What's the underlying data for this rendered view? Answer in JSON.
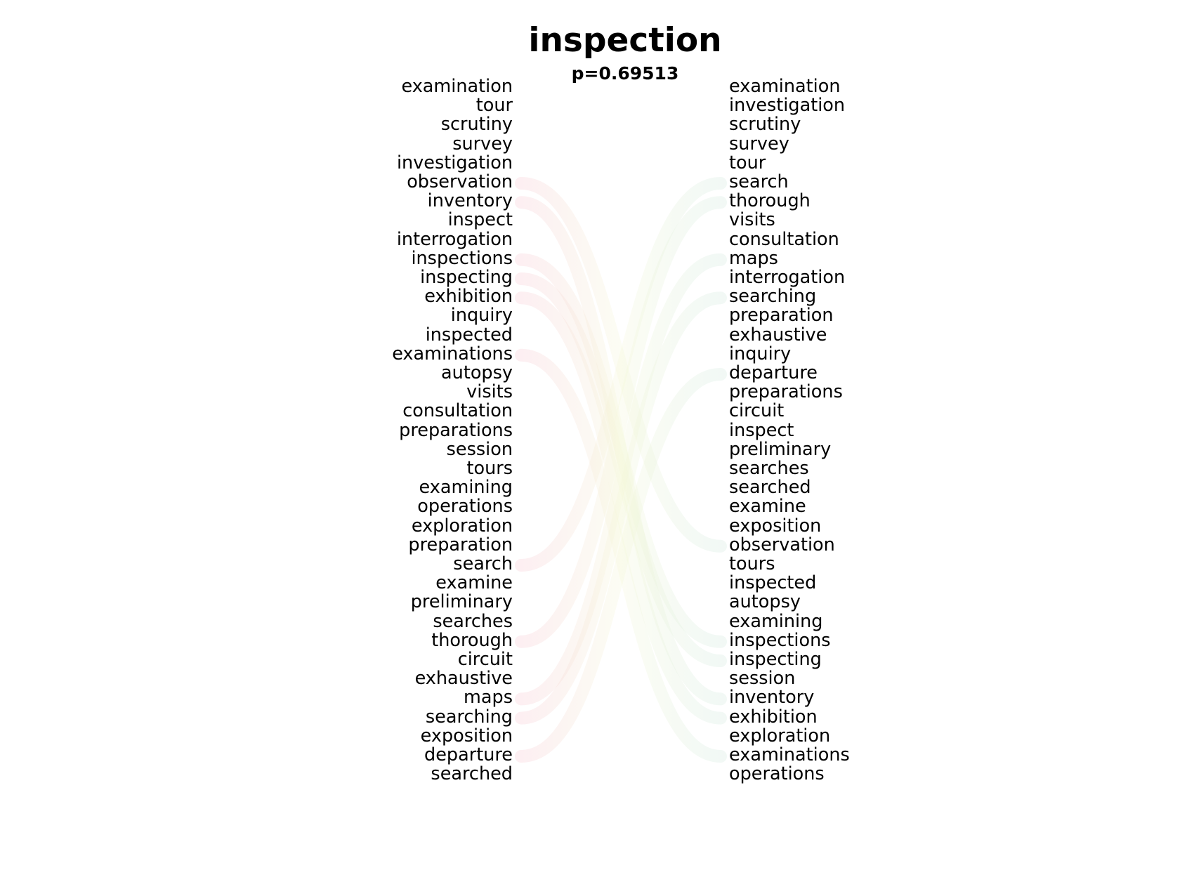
{
  "title": "inspection",
  "subtitle": "p=0.69513",
  "left_words": [
    "examination",
    "tour",
    "scrutiny",
    "survey",
    "investigation",
    "observation",
    "inventory",
    "inspect",
    "interrogation",
    "inspections",
    "inspecting",
    "exhibition",
    "inquiry",
    "inspected",
    "examinations",
    "autopsy",
    "visits",
    "consultation",
    "preparations",
    "session",
    "tours",
    "examining",
    "operations",
    "exploration",
    "preparation",
    "search",
    "examine",
    "preliminary",
    "searches",
    "thorough",
    "circuit",
    "exhaustive",
    "maps",
    "searching",
    "exposition",
    "departure",
    "searched"
  ],
  "right_words": [
    "examination",
    "investigation",
    "scrutiny",
    "survey",
    "tour",
    "search",
    "thorough",
    "visits",
    "consultation",
    "maps",
    "interrogation",
    "searching",
    "preparation",
    "exhaustive",
    "inquiry",
    "departure",
    "preparations",
    "circuit",
    "inspect",
    "preliminary",
    "searches",
    "searched",
    "examine",
    "exposition",
    "observation",
    "tours",
    "inspected",
    "autopsy",
    "examining",
    "inspections",
    "inspecting",
    "session",
    "inventory",
    "exhibition",
    "exploration",
    "examinations",
    "operations"
  ],
  "colors": {
    "left_band": "#f7c6cf",
    "right_band": "#cfe8dc",
    "middle_band": "#f4f7d6",
    "text": "#000000"
  },
  "links": [
    {
      "from": "observation",
      "to": "observation"
    },
    {
      "from": "inventory",
      "to": "inventory"
    },
    {
      "from": "inspections",
      "to": "inspections"
    },
    {
      "from": "inspecting",
      "to": "inspecting"
    },
    {
      "from": "exhibition",
      "to": "exhibition"
    },
    {
      "from": "examinations",
      "to": "examinations"
    },
    {
      "from": "search",
      "to": "search"
    },
    {
      "from": "thorough",
      "to": "thorough"
    },
    {
      "from": "maps",
      "to": "maps"
    },
    {
      "from": "searching",
      "to": "searching"
    },
    {
      "from": "departure",
      "to": "departure"
    }
  ]
}
